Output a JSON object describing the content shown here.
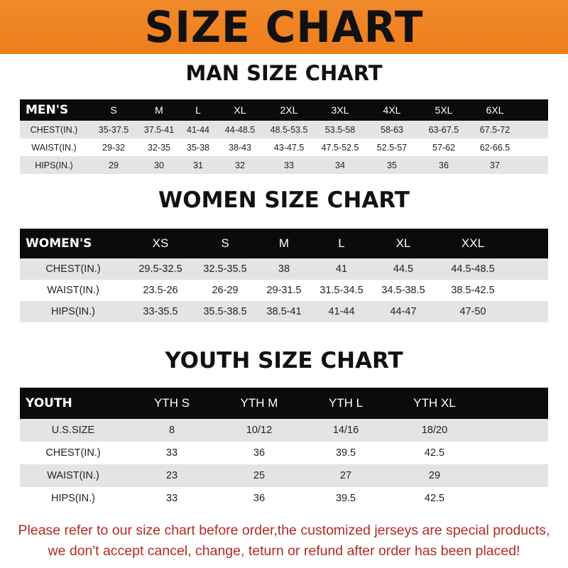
{
  "banner_title": "SIZE CHART",
  "men": {
    "heading": "MAN SIZE CHART",
    "header": [
      "MEN'S",
      "S",
      "M",
      "L",
      "XL",
      "2XL",
      "3XL",
      "4XL",
      "5XL",
      "6XL"
    ],
    "rows": [
      [
        "CHEST(IN.)",
        "35-37.5",
        "37.5-41",
        "41-44",
        "44-48.5",
        "48.5-53.5",
        "53.5-58",
        "58-63",
        "63-67.5",
        "67.5-72"
      ],
      [
        "WAIST(IN.)",
        "29-32",
        "32-35",
        "35-38",
        "38-43",
        "43-47.5",
        "47.5-52.5",
        "52.5-57",
        "57-62",
        "62-66.5"
      ],
      [
        "HIPS(IN.)",
        "29",
        "30",
        "31",
        "32",
        "33",
        "34",
        "35",
        "36",
        "37"
      ]
    ]
  },
  "women": {
    "heading": "WOMEN SIZE CHART",
    "header": [
      "WOMEN'S",
      "XS",
      "S",
      "M",
      "L",
      "XL",
      "XXL"
    ],
    "rows": [
      [
        "CHEST(IN.)",
        "29.5-32.5",
        "32.5-35.5",
        "38",
        "41",
        "44.5",
        "44.5-48.5"
      ],
      [
        "WAIST(IN.)",
        "23.5-26",
        "26-29",
        "29-31.5",
        "31.5-34.5",
        "34.5-38.5",
        "38.5-42.5"
      ],
      [
        "HIPS(IN.)",
        "33-35.5",
        "35.5-38.5",
        "38.5-41",
        "41-44",
        "44-47",
        "47-50"
      ]
    ]
  },
  "youth": {
    "heading": "YOUTH SIZE CHART",
    "header": [
      "YOUTH",
      "YTH S",
      "YTH M",
      "YTH L",
      "YTH XL"
    ],
    "rows": [
      [
        "U.S.SIZE",
        "8",
        "10/12",
        "14/16",
        "18/20"
      ],
      [
        "CHEST(IN.)",
        "33",
        "36",
        "39.5",
        "42.5"
      ],
      [
        "WAIST(IN.)",
        "23",
        "25",
        "27",
        "29"
      ],
      [
        "HIPS(IN.)",
        "33",
        "36",
        "39.5",
        "42.5"
      ]
    ]
  },
  "notice": {
    "line1": "Please refer to our size chart before order,the customized jerseys are special products,",
    "line2": "we don't accept cancel, change, teturn or refund after order has been placed!"
  },
  "colors": {
    "banner": "#ee7d1c",
    "header_row": "#0c0b0b",
    "stripe": "#e4e4e4",
    "notice": "#b52a22"
  }
}
